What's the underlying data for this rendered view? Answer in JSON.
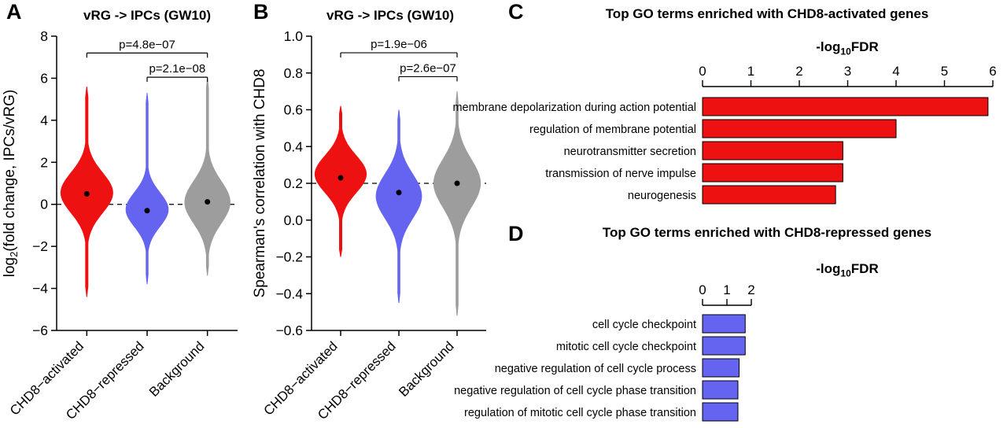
{
  "chart_data": [
    {
      "panel": "A",
      "type": "violin",
      "title": "vRG -> IPCs (GW10)",
      "ylabel": "log2(fold change, IPCs/vRG)",
      "ylabel_rich": [
        [
          "log",
          false
        ],
        [
          "2",
          true
        ],
        [
          "(fold change, IPCs/vRG)",
          false
        ]
      ],
      "ylim": [
        -6,
        8
      ],
      "yticks": [
        "8",
        "6",
        "4",
        "2",
        "0",
        "-2",
        "-4",
        "-6"
      ],
      "categories": [
        "CHD8-activated",
        "CHD8-repressed",
        "Background"
      ],
      "dashed_line_y": 0,
      "series": [
        {
          "name": "CHD8-activated",
          "color": "#ee1111",
          "min": -4.4,
          "max": 5.6,
          "mode": 0.55,
          "spread": 0.95,
          "median": 0.5,
          "width": 0.86
        },
        {
          "name": "CHD8-repressed",
          "color": "#6464f0",
          "min": -3.8,
          "max": 5.3,
          "mode": -0.25,
          "spread": 0.8,
          "median": -0.3,
          "width": 0.7
        },
        {
          "name": "Background",
          "color": "#9d9d9d",
          "min": -3.4,
          "max": 6.0,
          "mode": 0.1,
          "spread": 1.0,
          "median": 0.12,
          "width": 0.75
        }
      ],
      "comparisons": [
        {
          "from": 0,
          "to": 2,
          "label": "p=4.8e-07",
          "y": 7.2
        },
        {
          "from": 1,
          "to": 2,
          "label": "p=2.1e-08",
          "y": 6.05
        }
      ]
    },
    {
      "panel": "B",
      "type": "violin",
      "title": "vRG -> IPCs (GW10)",
      "ylabel": "Spearman's correlation with CHD8",
      "ylabel_rich": [
        [
          "Spearman's correlation with CHD8",
          false
        ]
      ],
      "ylim": [
        -0.6,
        1.0
      ],
      "yticks": [
        "1.0",
        "0.8",
        "0.6",
        "0.4",
        "0.2",
        "0.0",
        "-0.2",
        "-0.4",
        "-0.6"
      ],
      "categories": [
        "CHD8-activated",
        "CHD8-repressed",
        "Background"
      ],
      "dashed_line_y": 0.2,
      "series": [
        {
          "name": "CHD8-activated",
          "color": "#ee1111",
          "min": -0.2,
          "max": 0.62,
          "mode": 0.25,
          "spread": 0.1,
          "median": 0.23,
          "width": 0.88
        },
        {
          "name": "CHD8-repressed",
          "color": "#6464f0",
          "min": -0.45,
          "max": 0.6,
          "mode": 0.13,
          "spread": 0.12,
          "median": 0.15,
          "width": 0.78
        },
        {
          "name": "Background",
          "color": "#9d9d9d",
          "min": -0.52,
          "max": 0.7,
          "mode": 0.2,
          "spread": 0.13,
          "median": 0.2,
          "width": 0.8
        }
      ],
      "comparisons": [
        {
          "from": 0,
          "to": 2,
          "label": "p=1.9e-06",
          "y": 0.91
        },
        {
          "from": 1,
          "to": 2,
          "label": "p=2.6e-07",
          "y": 0.78
        }
      ]
    },
    {
      "panel": "C",
      "type": "bar",
      "title": "Top GO terms enriched with CHD8-activated genes",
      "xlabel": "-log10FDR",
      "xlabel_parts": [
        "-log",
        "10",
        "FDR"
      ],
      "xlim": [
        0,
        6
      ],
      "xticks": [
        "0",
        "1",
        "2",
        "3",
        "4",
        "5",
        "6"
      ],
      "categories": [
        "membrane depolarization during action potential",
        "regulation of membrane potential",
        "neurotransmitter secretion",
        "transmission of nerve impulse",
        "neurogenesis"
      ],
      "values": [
        5.9,
        4.0,
        2.9,
        2.9,
        2.75
      ],
      "color": "#ee1111"
    },
    {
      "panel": "D",
      "type": "bar",
      "title": "Top GO terms enriched with CHD8-repressed genes",
      "xlabel": "-log10FDR",
      "xlabel_parts": [
        "-log",
        "10",
        "FDR"
      ],
      "xlim": [
        0,
        2
      ],
      "xticks": [
        "0",
        "1",
        "2"
      ],
      "categories": [
        "cell cycle checkpoint",
        "mitotic cell cycle checkpoint",
        "negative regulation of cell cycle process",
        "negative regulation of cell cycle phase transition",
        "regulation of mitotic cell cycle phase transition"
      ],
      "values": [
        1.75,
        1.75,
        1.5,
        1.45,
        1.45
      ],
      "color": "#6464f0"
    }
  ]
}
